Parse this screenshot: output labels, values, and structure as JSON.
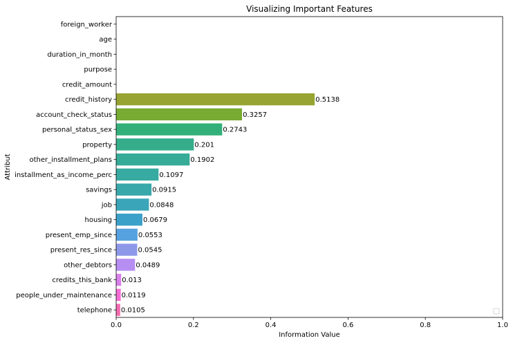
{
  "chart_data": {
    "type": "bar",
    "orientation": "horizontal",
    "title": "Visualizing Important Features",
    "xlabel": "Information Value",
    "ylabel": "Attribut",
    "xlim": [
      0,
      1
    ],
    "xticks": [
      "0.0",
      "0.2",
      "0.4",
      "0.6",
      "0.8",
      "1.0"
    ],
    "xtick_values": [
      0,
      0.2,
      0.4,
      0.6,
      0.8,
      1.0
    ],
    "grid": false,
    "legend": "lower-right (empty)",
    "categories": [
      "foreign_worker",
      "age",
      "duration_in_month",
      "purpose",
      "credit_amount",
      "credit_history",
      "account_check_status",
      "personal_status_sex",
      "property",
      "other_installment_plans",
      "installment_as_income_perc",
      "savings",
      "job",
      "housing",
      "present_emp_since",
      "present_res_since",
      "other_debtors",
      "credits_this_bank",
      "people_under_maintenance",
      "telephone"
    ],
    "values": [
      0,
      0,
      0,
      0,
      0,
      0.5138,
      0.3257,
      0.2743,
      0.201,
      0.1902,
      0.1097,
      0.0915,
      0.0848,
      0.0679,
      0.0553,
      0.0545,
      0.0489,
      0.013,
      0.0119,
      0.0105
    ],
    "value_labels": [
      "",
      "",
      "",
      "",
      "",
      "0.5138",
      "0.3257",
      "0.2743",
      "0.201",
      "0.1902",
      "0.1097",
      "0.0915",
      "0.0848",
      "0.0679",
      "0.0553",
      "0.0545",
      "0.0489",
      "0.013",
      "0.0119",
      "0.0105"
    ],
    "colors": [
      "#f77189",
      "#f7754f",
      "#dc8932",
      "#c39532",
      "#ae9d31",
      "#97a431",
      "#77ab31",
      "#33b07a",
      "#35ad8b",
      "#36ab97",
      "#37aaa1",
      "#38a8ab",
      "#3aa5b8",
      "#3ca1c9",
      "#56a1e0",
      "#8e98e9",
      "#b68ef2",
      "#d980ea",
      "#f66bd5",
      "#f56bb0"
    ]
  }
}
